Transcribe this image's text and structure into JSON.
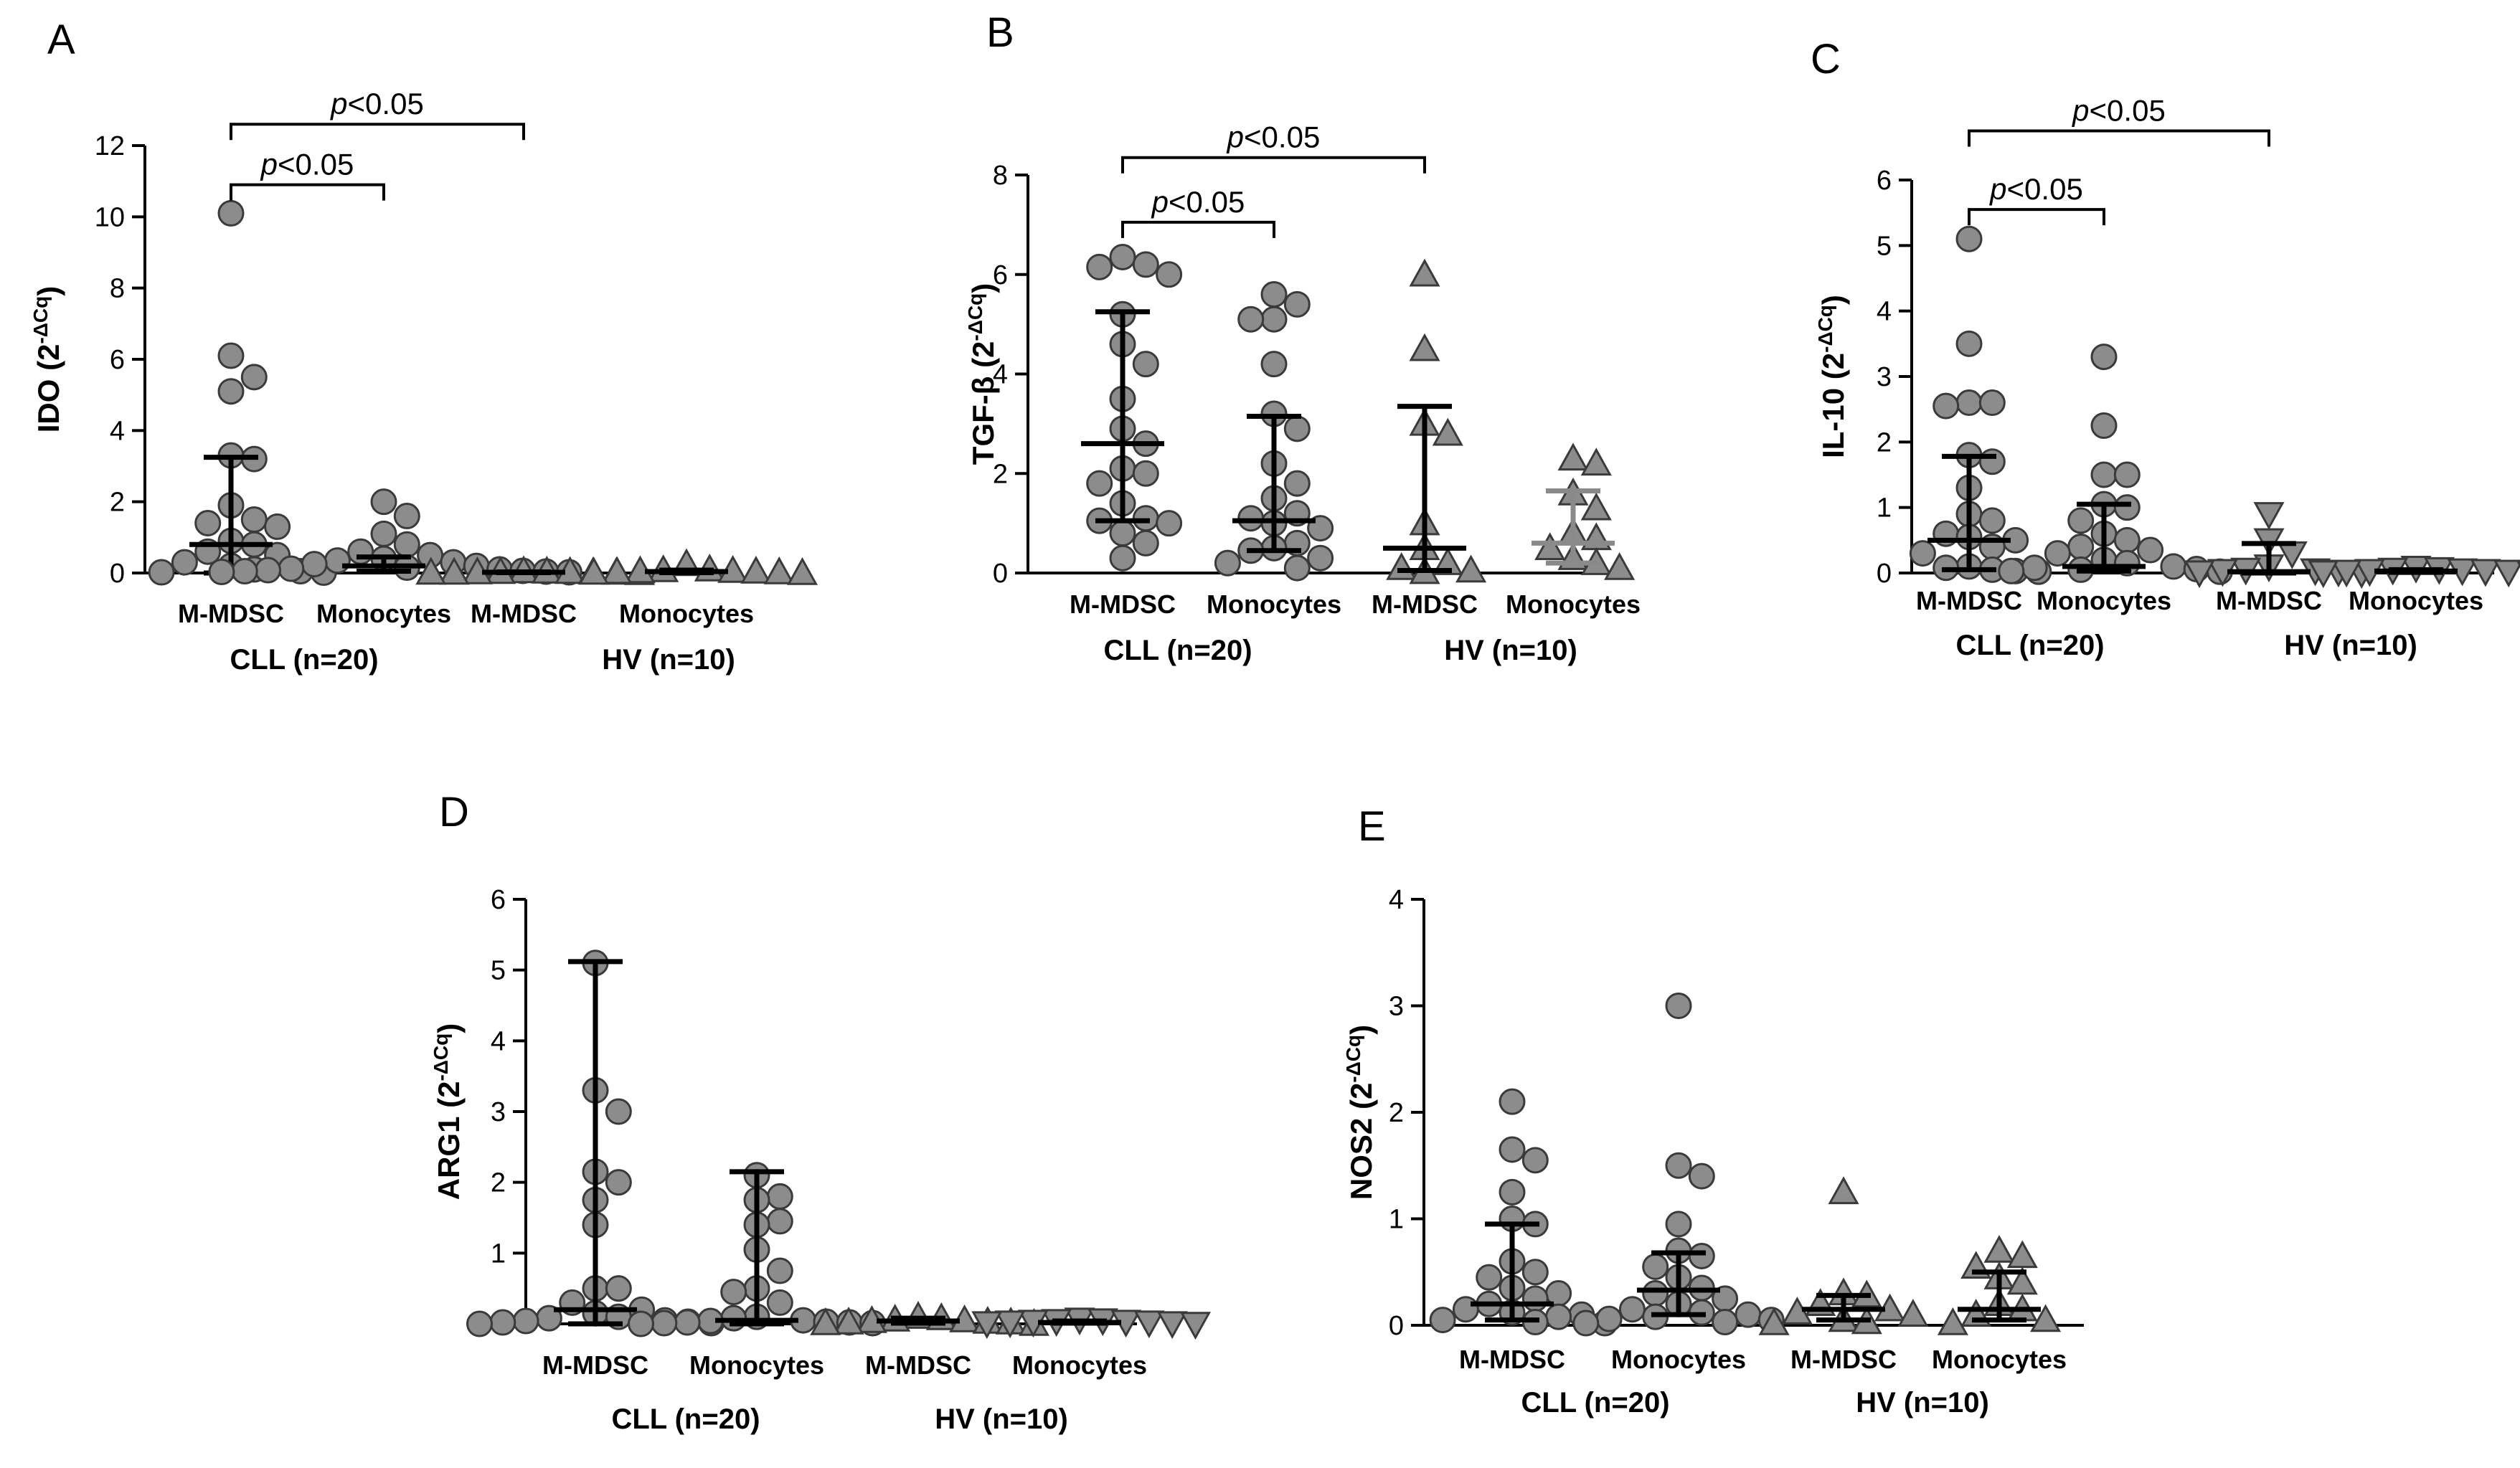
{
  "figure": {
    "background": "#ffffff",
    "axis_color": "#000000"
  },
  "chart_data": [
    {
      "type": "scatter",
      "panel": "A",
      "ylabel": "IDO (2",
      "ylabel_sup": "-ΔCq",
      "ylim": [
        0,
        12
      ],
      "yticks": [
        0,
        2,
        4,
        6,
        8,
        10,
        12
      ],
      "categories": [
        "M-MDSC",
        "Monocytes",
        "M-MDSC",
        "Monocytes"
      ],
      "groups": [
        {
          "label": "CLL (n=20)",
          "covers": [
            0,
            1
          ]
        },
        {
          "label": "HV (n=10)",
          "covers": [
            2,
            3
          ]
        }
      ],
      "series": [
        {
          "name": "CLL M-MDSC",
          "marker": "circle",
          "values": [
            10.1,
            6.1,
            5.5,
            5.1,
            3.3,
            3.2,
            1.9,
            1.5,
            1.4,
            1.3,
            0.9,
            0.8,
            0.6,
            0.5,
            0.3,
            0.2,
            0.1,
            0.05,
            0.02,
            0.01
          ],
          "median": 0.8,
          "q1": 0.0,
          "q3": 3.25,
          "whisker_color": "#000000"
        },
        {
          "name": "CLL Monocytes",
          "marker": "circle",
          "values": [
            2.0,
            1.6,
            1.1,
            0.8,
            0.6,
            0.5,
            0.4,
            0.35,
            0.3,
            0.25,
            0.2,
            0.15,
            0.12,
            0.1,
            0.08,
            0.06,
            0.05,
            0.04,
            0.03,
            0.02
          ],
          "median": 0.2,
          "q1": 0.05,
          "q3": 0.45,
          "whisker_color": "#000000"
        },
        {
          "name": "HV M-MDSC",
          "marker": "triangle-up",
          "values": [
            0.05,
            0.04,
            0.03,
            0.03,
            0.02,
            0.02,
            0.01,
            0.01,
            0.01,
            0.0
          ],
          "median": 0.02,
          "q1": 0.01,
          "q3": 0.03,
          "whisker_color": "#000000"
        },
        {
          "name": "HV Monocytes",
          "marker": "triangle-up",
          "values": [
            0.25,
            0.1,
            0.08,
            0.06,
            0.05,
            0.04,
            0.03,
            0.02,
            0.01,
            0.0
          ],
          "median": 0.04,
          "q1": 0.01,
          "q3": 0.08,
          "whisker_color": "#000000"
        }
      ],
      "significance": [
        {
          "label_prefix": "p",
          "label_suffix": "<0.05",
          "from": 0,
          "to": 1,
          "y": 10.9
        },
        {
          "label_prefix": "p",
          "label_suffix": "<0.05",
          "from": 0,
          "to": 2,
          "y": 12.6
        }
      ]
    },
    {
      "type": "scatter",
      "panel": "B",
      "ylabel": "TGF-β (2",
      "ylabel_sup": "-ΔCq",
      "ylim": [
        0,
        8
      ],
      "yticks": [
        0,
        2,
        4,
        6,
        8
      ],
      "categories": [
        "M-MDSC",
        "Monocytes",
        "M-MDSC",
        "Monocytes"
      ],
      "groups": [
        {
          "label": "CLL (n=20)",
          "covers": [
            0,
            1
          ]
        },
        {
          "label": "HV (n=10)",
          "covers": [
            2,
            3
          ]
        }
      ],
      "series": [
        {
          "name": "CLL M-MDSC",
          "marker": "circle",
          "values": [
            6.35,
            6.2,
            6.15,
            6.0,
            5.2,
            4.6,
            4.2,
            3.5,
            2.9,
            2.6,
            2.1,
            2.0,
            1.8,
            1.4,
            1.1,
            1.05,
            1.0,
            0.8,
            0.6,
            0.3
          ],
          "median": 2.6,
          "q1": 1.05,
          "q3": 5.25,
          "whisker_color": "#000000"
        },
        {
          "name": "CLL Monocytes",
          "marker": "circle",
          "values": [
            5.6,
            5.4,
            5.1,
            5.1,
            4.2,
            3.2,
            2.9,
            2.2,
            1.8,
            1.5,
            1.2,
            1.1,
            1.0,
            0.9,
            0.6,
            0.5,
            0.45,
            0.3,
            0.2,
            0.1
          ],
          "median": 1.05,
          "q1": 0.45,
          "q3": 3.15,
          "whisker_color": "#000000"
        },
        {
          "name": "HV M-MDSC",
          "marker": "triangle-up",
          "values": [
            6.0,
            4.5,
            3.0,
            2.8,
            1.0,
            0.5,
            0.2,
            0.1,
            0.05,
            0.02
          ],
          "median": 0.5,
          "q1": 0.05,
          "q3": 3.35,
          "whisker_color": "#000000"
        },
        {
          "name": "HV Monocytes",
          "marker": "triangle-up",
          "values": [
            2.3,
            2.2,
            1.6,
            1.3,
            0.8,
            0.7,
            0.5,
            0.3,
            0.2,
            0.1
          ],
          "median": 0.6,
          "q1": 0.2,
          "q3": 1.65,
          "whisker_color": "#8a8a8a"
        }
      ],
      "significance": [
        {
          "label_prefix": "p",
          "label_suffix": "<0.05",
          "from": 0,
          "to": 1,
          "y": 7.05
        },
        {
          "label_prefix": "p",
          "label_suffix": "<0.05",
          "from": 0,
          "to": 2,
          "y": 8.35
        }
      ]
    },
    {
      "type": "scatter",
      "panel": "C",
      "ylabel": "IL-10 (2",
      "ylabel_sup": "-ΔCq",
      "ylim": [
        0,
        6
      ],
      "yticks": [
        0,
        1,
        2,
        3,
        4,
        5,
        6
      ],
      "categories": [
        "M-MDSC",
        "Monocytes",
        "M-MDSC",
        "Monocytes"
      ],
      "groups": [
        {
          "label": "CLL (n=20)",
          "covers": [
            0,
            1
          ]
        },
        {
          "label": "HV (n=10)",
          "covers": [
            2,
            3
          ]
        }
      ],
      "series": [
        {
          "name": "CLL M-MDSC",
          "marker": "circle",
          "values": [
            5.1,
            3.5,
            2.6,
            2.6,
            2.55,
            1.8,
            1.7,
            1.3,
            0.9,
            0.8,
            0.6,
            0.55,
            0.5,
            0.4,
            0.3,
            0.1,
            0.08,
            0.05,
            0.03,
            0.02
          ],
          "median": 0.5,
          "q1": 0.05,
          "q3": 1.78,
          "whisker_color": "#000000"
        },
        {
          "name": "CLL Monocytes",
          "marker": "circle",
          "values": [
            3.3,
            2.25,
            1.5,
            1.5,
            1.05,
            1.0,
            0.8,
            0.6,
            0.5,
            0.4,
            0.35,
            0.3,
            0.2,
            0.15,
            0.1,
            0.08,
            0.06,
            0.05,
            0.03,
            0.02
          ],
          "median": 0.1,
          "q1": 0.03,
          "q3": 1.05,
          "whisker_color": "#000000"
        },
        {
          "name": "HV M-MDSC",
          "marker": "triangle-down",
          "values": [
            0.9,
            0.5,
            0.3,
            0.1,
            0.05,
            0.04,
            0.03,
            0.02,
            0.01,
            0.0
          ],
          "median": 0.02,
          "q1": 0.0,
          "q3": 0.45,
          "whisker_color": "#000000"
        },
        {
          "name": "HV Monocytes",
          "marker": "triangle-down",
          "values": [
            0.08,
            0.06,
            0.05,
            0.04,
            0.03,
            0.03,
            0.02,
            0.02,
            0.01,
            0.0
          ],
          "median": 0.03,
          "q1": 0.01,
          "q3": 0.05,
          "whisker_color": "#000000"
        }
      ],
      "significance": [
        {
          "label_prefix": "p",
          "label_suffix": "<0.05",
          "from": 0,
          "to": 1,
          "y": 5.55
        },
        {
          "label_prefix": "p",
          "label_suffix": "<0.05",
          "from": 0,
          "to": 2,
          "y": 6.75
        }
      ]
    },
    {
      "type": "scatter",
      "panel": "D",
      "ylabel": "ARG1 (2",
      "ylabel_sup": "-ΔCq",
      "ylim": [
        0,
        6
      ],
      "yticks": [
        0,
        1,
        2,
        3,
        4,
        5,
        6
      ],
      "categories": [
        "M-MDSC",
        "Monocytes",
        "M-MDSC",
        "Monocytes"
      ],
      "groups": [
        {
          "label": "CLL (n=20)",
          "covers": [
            0,
            1
          ]
        },
        {
          "label": "HV (n=10)",
          "covers": [
            2,
            3
          ]
        }
      ],
      "series": [
        {
          "name": "CLL M-MDSC",
          "marker": "circle",
          "values": [
            5.1,
            3.3,
            3.0,
            2.15,
            2.0,
            1.75,
            1.4,
            0.5,
            0.5,
            0.3,
            0.2,
            0.15,
            0.1,
            0.08,
            0.05,
            0.04,
            0.03,
            0.02,
            0.01,
            0.0
          ],
          "median": 0.2,
          "q1": 0.0,
          "q3": 5.12,
          "whisker_color": "#000000"
        },
        {
          "name": "CLL Monocytes",
          "marker": "circle",
          "values": [
            2.1,
            1.8,
            1.75,
            1.45,
            1.4,
            1.05,
            0.75,
            0.5,
            0.45,
            0.3,
            0.1,
            0.08,
            0.05,
            0.04,
            0.03,
            0.02,
            0.02,
            0.01,
            0.01,
            0.0
          ],
          "median": 0.05,
          "q1": 0.0,
          "q3": 2.15,
          "whisker_color": "#000000"
        },
        {
          "name": "HV M-MDSC",
          "marker": "triangle-up",
          "values": [
            0.1,
            0.08,
            0.06,
            0.05,
            0.04,
            0.03,
            0.02,
            0.02,
            0.01,
            0.0
          ],
          "median": 0.04,
          "q1": 0.01,
          "q3": 0.08,
          "whisker_color": "#000000"
        },
        {
          "name": "HV Monocytes",
          "marker": "triangle-down",
          "values": [
            0.06,
            0.05,
            0.04,
            0.03,
            0.03,
            0.02,
            0.02,
            0.01,
            0.01,
            0.0
          ],
          "median": 0.02,
          "q1": 0.01,
          "q3": 0.04,
          "whisker_color": "#000000"
        }
      ],
      "significance": []
    },
    {
      "type": "scatter",
      "panel": "E",
      "ylabel": "NOS2 (2",
      "ylabel_sup": "-ΔCq",
      "ylim": [
        0,
        4
      ],
      "yticks": [
        0,
        1,
        2,
        3,
        4
      ],
      "categories": [
        "M-MDSC",
        "Monocytes",
        "M-MDSC",
        "Monocytes"
      ],
      "groups": [
        {
          "label": "CLL (n=20)",
          "covers": [
            0,
            1
          ]
        },
        {
          "label": "HV (n=10)",
          "covers": [
            2,
            3
          ]
        }
      ],
      "series": [
        {
          "name": "CLL M-MDSC",
          "marker": "circle",
          "values": [
            2.1,
            1.65,
            1.55,
            1.25,
            1.0,
            0.95,
            0.6,
            0.5,
            0.45,
            0.35,
            0.3,
            0.25,
            0.2,
            0.15,
            0.12,
            0.1,
            0.08,
            0.05,
            0.03,
            0.02
          ],
          "median": 0.2,
          "q1": 0.05,
          "q3": 0.95,
          "whisker_color": "#000000"
        },
        {
          "name": "CLL Monocytes",
          "marker": "circle",
          "values": [
            3.0,
            1.5,
            1.4,
            0.95,
            0.7,
            0.65,
            0.55,
            0.45,
            0.35,
            0.3,
            0.25,
            0.2,
            0.15,
            0.12,
            0.1,
            0.08,
            0.06,
            0.05,
            0.03,
            0.02
          ],
          "median": 0.33,
          "q1": 0.1,
          "q3": 0.68,
          "whisker_color": "#000000"
        },
        {
          "name": "HV M-MDSC",
          "marker": "triangle-up",
          "values": [
            1.25,
            0.3,
            0.28,
            0.2,
            0.15,
            0.12,
            0.1,
            0.05,
            0.03,
            0.02
          ],
          "median": 0.15,
          "q1": 0.05,
          "q3": 0.28,
          "whisker_color": "#000000"
        },
        {
          "name": "HV Monocytes",
          "marker": "triangle-up",
          "values": [
            0.7,
            0.65,
            0.55,
            0.45,
            0.4,
            0.2,
            0.15,
            0.1,
            0.05,
            0.02
          ],
          "median": 0.15,
          "q1": 0.05,
          "q3": 0.5,
          "whisker_color": "#000000"
        }
      ],
      "significance": []
    }
  ]
}
